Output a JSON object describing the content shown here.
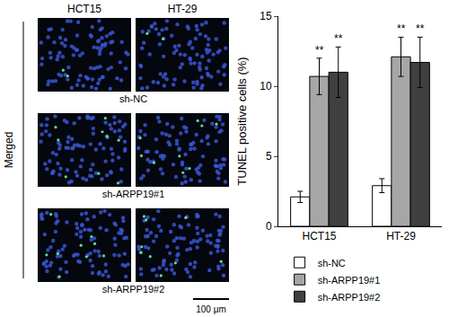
{
  "chart_data": {
    "type": "bar",
    "categories": [
      "HCT15",
      "HT-29"
    ],
    "y_label": "TUNEL positive cells (%)",
    "ylim": [
      0,
      15
    ],
    "yticks": [
      0,
      5,
      10,
      15
    ],
    "grid": false,
    "legend": "bottom",
    "series": [
      {
        "name": "sh-NC",
        "color": "#ffffff",
        "values": [
          2.1,
          2.9
        ],
        "errors": [
          0.4,
          0.5
        ]
      },
      {
        "name": "sh-ARPP19#1",
        "color": "#a6a6a6",
        "values": [
          10.7,
          12.1
        ],
        "errors": [
          1.3,
          1.4
        ],
        "annotations": [
          "**",
          "**"
        ]
      },
      {
        "name": "sh-ARPP19#2",
        "color": "#404040",
        "values": [
          11.0,
          11.7
        ],
        "errors": [
          1.8,
          1.8
        ],
        "annotations": [
          "**",
          "**"
        ]
      }
    ]
  },
  "image_panel": {
    "columns": [
      "HCT15",
      "HT-29"
    ],
    "rows": [
      "sh-NC",
      "sh-ARPP19#1",
      "sh-ARPP19#2"
    ],
    "side_label": "Merged",
    "scale_bar": "100 μm"
  }
}
